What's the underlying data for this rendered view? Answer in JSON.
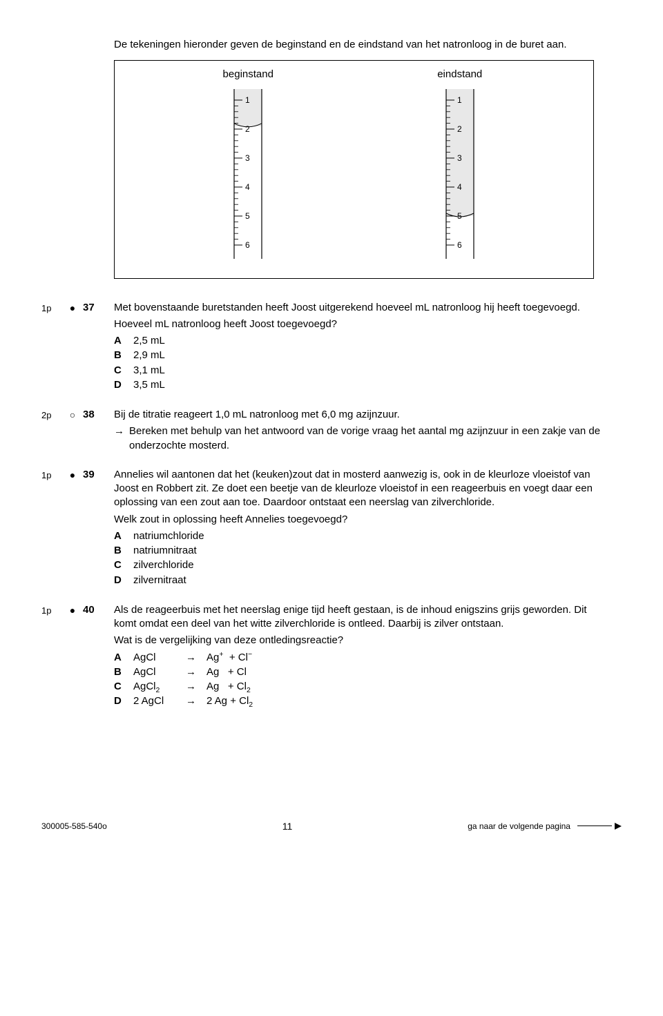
{
  "intro": "De tekeningen hieronder geven de beginstand en de eindstand van het natronloog in de buret aan.",
  "burette": {
    "begin_label": "beginstand",
    "eind_label": "eindstand",
    "ticks": [
      "1",
      "2",
      "3",
      "4",
      "5",
      "6"
    ],
    "begin_level": 1.9,
    "eind_level": 5.0,
    "tube_fill": "#e8e8e8",
    "liquid_fill": "#ffffff",
    "stroke": "#000000"
  },
  "q37": {
    "points": "1p",
    "num": "37",
    "text1": "Met bovenstaande buretstanden heeft Joost uitgerekend hoeveel mL natronloog hij heeft toegevoegd.",
    "text2": "Hoeveel mL natronloog heeft Joost toegevoegd?",
    "opts": {
      "A": "2,5 mL",
      "B": "2,9 mL",
      "C": "3,1 mL",
      "D": "3,5 mL"
    }
  },
  "q38": {
    "points": "2p",
    "num": "38",
    "text1": "Bij de titratie reageert 1,0 mL natronloog met 6,0 mg azijnzuur.",
    "arrow_text": "Bereken met behulp van het antwoord van de vorige vraag het aantal mg azijnzuur in een zakje van de onderzochte mosterd."
  },
  "q39": {
    "points": "1p",
    "num": "39",
    "text1": "Annelies wil aantonen dat het (keuken)zout dat in mosterd aanwezig is, ook in de kleurloze vloeistof van Joost en Robbert zit. Ze doet een beetje van de kleurloze vloeistof in een reageerbuis en voegt daar een oplossing van een zout aan toe. Daardoor ontstaat een neerslag van zilverchloride.",
    "text2": "Welk zout in oplossing heeft Annelies toegevoegd?",
    "opts": {
      "A": "natriumchloride",
      "B": "natriumnitraat",
      "C": "zilverchloride",
      "D": "zilvernitraat"
    }
  },
  "q40": {
    "points": "1p",
    "num": "40",
    "text1": "Als de reageerbuis met het neerslag enige tijd heeft gestaan, is de inhoud enigszins grijs geworden. Dit komt omdat een deel van het witte zilverchloride is ontleed. Daarbij is zilver ontstaan.",
    "text2": "Wat is de vergelijking van deze ontledingsreactie?",
    "eq": {
      "A": {
        "lhs": "AgCl",
        "rhs_html": "Ag<sup>+</sup>  + Cl<sup>−</sup>"
      },
      "B": {
        "lhs": "AgCl",
        "rhs_html": "Ag   + Cl"
      },
      "C": {
        "lhs_html": "AgCl<sub>2</sub>",
        "rhs_html": "Ag   + Cl<sub>2</sub>"
      },
      "D": {
        "lhs_html": "2 AgCl",
        "rhs_html": "2 Ag + Cl<sub>2</sub>"
      }
    }
  },
  "footer": {
    "left": "300005-585-540o",
    "mid": "11",
    "right": "ga naar de volgende pagina"
  }
}
